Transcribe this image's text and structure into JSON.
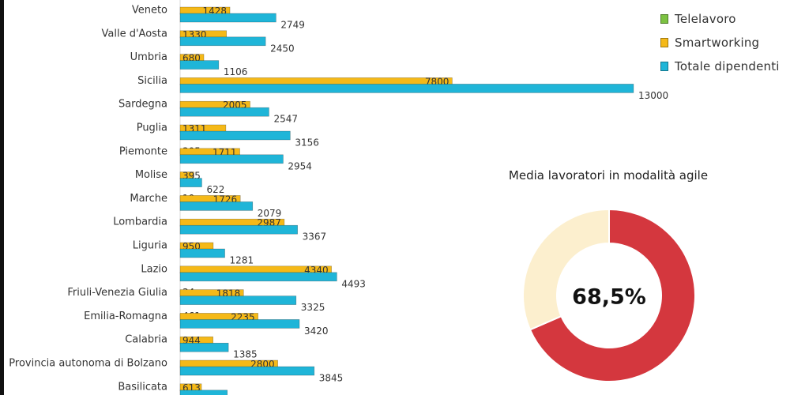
{
  "chart_data": [
    {
      "type": "bar",
      "orientation": "horizontal",
      "categories": [
        "Veneto",
        "Valle d'Aosta",
        "Umbria",
        "Sicilia",
        "Sardegna",
        "Puglia",
        "Piemonte",
        "Molise",
        "Marche",
        "Lombardia",
        "Liguria",
        "Lazio",
        "Friuli-Venezia Giulia",
        "Emilia-Romagna",
        "Calabria",
        "Provincia autonoma di Bolzano",
        "Basilicata"
      ],
      "series": [
        {
          "name": "Telelavoro",
          "color": "#7cc242",
          "values": [
            null,
            null,
            null,
            null,
            null,
            null,
            305,
            null,
            10,
            null,
            null,
            null,
            34,
            461,
            null,
            null,
            null
          ]
        },
        {
          "name": "Smartworking",
          "color": "#f5b918",
          "values": [
            1428,
            1330,
            680,
            7800,
            2005,
            1311,
            1711,
            395,
            1726,
            2987,
            950,
            4340,
            1818,
            2235,
            944,
            2800,
            613
          ]
        },
        {
          "name": "Totale dipendenti",
          "color": "#1fb5d8",
          "values": [
            2749,
            2450,
            1106,
            13000,
            2547,
            3156,
            2954,
            622,
            2079,
            3367,
            1281,
            4493,
            3325,
            3420,
            1385,
            3845,
            1353
          ]
        }
      ],
      "legend": "top-right"
    },
    {
      "type": "pie",
      "title": "Media lavoratori in modalità agile",
      "center_label": "68,5%",
      "slices": [
        {
          "value": 68.5,
          "color": "#d4373e"
        },
        {
          "value": 31.5,
          "color": "#fcefce"
        }
      ]
    }
  ]
}
